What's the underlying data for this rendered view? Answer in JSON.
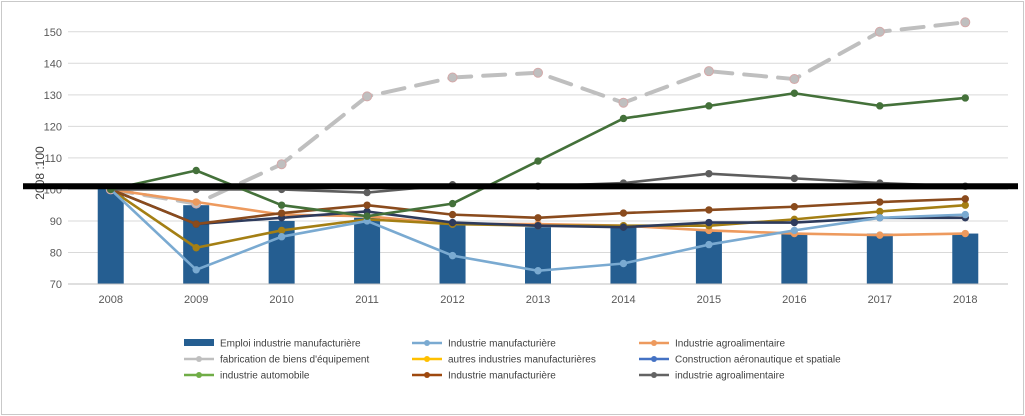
{
  "chart_data": {
    "type": "line",
    "ylabel": "2008 :100",
    "xlabel": "",
    "title": "",
    "ylim": [
      70,
      155
    ],
    "yticks": [
      70,
      80,
      90,
      100,
      110,
      120,
      130,
      140,
      150
    ],
    "x": [
      "2008",
      "2009",
      "2010",
      "2011",
      "2012",
      "2013",
      "2014",
      "2015",
      "2016",
      "2017",
      "2018"
    ],
    "reference_line": 101,
    "grid": true,
    "legend_position": "bottom",
    "series": [
      {
        "name": "Emploi industrie manufacturière",
        "type": "bar",
        "color": "#255e91",
        "marker": "none",
        "values": [
          101,
          95,
          90,
          91,
          89,
          88,
          88,
          87,
          86,
          86,
          86
        ]
      },
      {
        "name": "Industrie manufacturière",
        "type": "line",
        "color": "#7aaad1",
        "marker": "circle",
        "dash": "solid",
        "values": [
          100,
          74.5,
          85,
          90,
          79,
          74.2,
          76.5,
          82.5,
          87,
          91,
          92
        ]
      },
      {
        "name": "Industrie agroalimentaire",
        "type": "line",
        "color": "#ed9a5e",
        "marker": "circle",
        "dash": "solid",
        "values": [
          100,
          96,
          92,
          91.5,
          89,
          89,
          88.5,
          87,
          86,
          85.5,
          86
        ]
      },
      {
        "name": "fabrication de biens d'équipement",
        "type": "line",
        "color": "#bfbfbf",
        "marker": "circle",
        "dash": "long-dash",
        "values": [
          100,
          95.5,
          108,
          129.5,
          135.5,
          137,
          127.5,
          137.5,
          135,
          150,
          153
        ]
      },
      {
        "name": "autres industries manufacturières",
        "type": "line",
        "color": "#a47f14",
        "marker": "circle",
        "dash": "solid",
        "values": [
          100,
          81.5,
          87,
          90.5,
          89,
          88.5,
          88.5,
          88.5,
          90.5,
          93,
          95
        ]
      },
      {
        "name": "Construction aéronautique et spatiale",
        "type": "line",
        "color": "#2e3b5c",
        "marker": "circle",
        "dash": "solid",
        "values": [
          100,
          89,
          91,
          93,
          89.5,
          88.5,
          88,
          89.5,
          89.5,
          91,
          91
        ]
      },
      {
        "name": "Industrie automobile",
        "type": "line",
        "color": "#44713a",
        "marker": "circle",
        "dash": "solid",
        "values": [
          100,
          106,
          95,
          91.5,
          95.5,
          109,
          122.5,
          126.5,
          130.5,
          126.5,
          129
        ]
      },
      {
        "name": "Industrie manufacturière",
        "type": "line",
        "color": "#8a4b1d",
        "marker": "circle",
        "dash": "solid",
        "values": [
          100,
          89,
          92.5,
          95,
          92,
          91,
          92.5,
          93.5,
          94.5,
          96,
          97
        ]
      },
      {
        "name": "industrie agroalimentaire",
        "type": "line",
        "color": "#5e5e5e",
        "marker": "circle",
        "dash": "solid",
        "values": [
          100,
          100,
          100,
          99,
          101.5,
          101,
          102,
          105,
          103.5,
          102,
          101
        ]
      }
    ],
    "legend": [
      {
        "label": "Emploi industrie manufacturière",
        "color": "#255e91",
        "kind": "bar"
      },
      {
        "label": "Industrie manufacturière",
        "color": "#7aaad1",
        "kind": "line"
      },
      {
        "label": "Industrie agroalimentaire",
        "color": "#ed9a5e",
        "kind": "line"
      },
      {
        "label": "fabrication de biens d'équipement",
        "color": "#bfbfbf",
        "kind": "line"
      },
      {
        "label": "autres industries manufacturières",
        "color": "#ffc000",
        "kind": "line"
      },
      {
        "label": "Construction aéronautique et spatiale",
        "color": "#4472c4",
        "kind": "line"
      },
      {
        "label": "industrie automobile",
        "color": "#70ad47",
        "kind": "line"
      },
      {
        "label": "Industrie manufacturière",
        "color": "#9e480e",
        "kind": "line"
      },
      {
        "label": "industrie agroalimentaire",
        "color": "#636363",
        "kind": "line"
      }
    ]
  }
}
